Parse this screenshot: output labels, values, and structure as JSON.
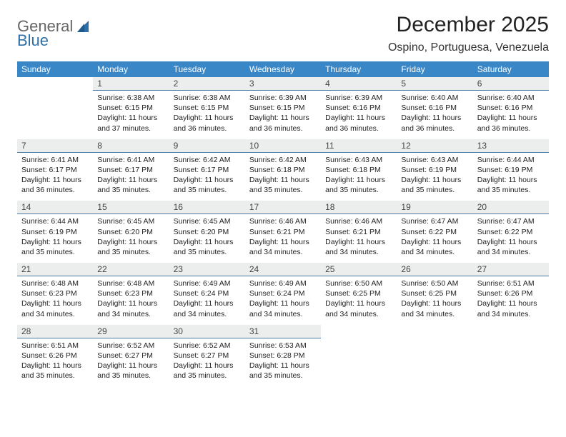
{
  "brand": {
    "general": "General",
    "blue": "Blue"
  },
  "title": {
    "month": "December 2025",
    "location": "Ospino, Portuguesa, Venezuela"
  },
  "colors": {
    "header_bg": "#3a87c8",
    "header_fg": "#ffffff",
    "daynum_bg": "#eceded",
    "daynum_border": "#4a7aa5",
    "text": "#222222",
    "logo_accent": "#2f6fa7"
  },
  "weekdays": [
    "Sunday",
    "Monday",
    "Tuesday",
    "Wednesday",
    "Thursday",
    "Friday",
    "Saturday"
  ],
  "weeks": [
    {
      "nums": [
        "",
        "1",
        "2",
        "3",
        "4",
        "5",
        "6"
      ],
      "cells": [
        null,
        {
          "sunrise": "Sunrise: 6:38 AM",
          "sunset": "Sunset: 6:15 PM",
          "daylight": "Daylight: 11 hours and 37 minutes."
        },
        {
          "sunrise": "Sunrise: 6:38 AM",
          "sunset": "Sunset: 6:15 PM",
          "daylight": "Daylight: 11 hours and 36 minutes."
        },
        {
          "sunrise": "Sunrise: 6:39 AM",
          "sunset": "Sunset: 6:15 PM",
          "daylight": "Daylight: 11 hours and 36 minutes."
        },
        {
          "sunrise": "Sunrise: 6:39 AM",
          "sunset": "Sunset: 6:16 PM",
          "daylight": "Daylight: 11 hours and 36 minutes."
        },
        {
          "sunrise": "Sunrise: 6:40 AM",
          "sunset": "Sunset: 6:16 PM",
          "daylight": "Daylight: 11 hours and 36 minutes."
        },
        {
          "sunrise": "Sunrise: 6:40 AM",
          "sunset": "Sunset: 6:16 PM",
          "daylight": "Daylight: 11 hours and 36 minutes."
        }
      ]
    },
    {
      "nums": [
        "7",
        "8",
        "9",
        "10",
        "11",
        "12",
        "13"
      ],
      "cells": [
        {
          "sunrise": "Sunrise: 6:41 AM",
          "sunset": "Sunset: 6:17 PM",
          "daylight": "Daylight: 11 hours and 36 minutes."
        },
        {
          "sunrise": "Sunrise: 6:41 AM",
          "sunset": "Sunset: 6:17 PM",
          "daylight": "Daylight: 11 hours and 35 minutes."
        },
        {
          "sunrise": "Sunrise: 6:42 AM",
          "sunset": "Sunset: 6:17 PM",
          "daylight": "Daylight: 11 hours and 35 minutes."
        },
        {
          "sunrise": "Sunrise: 6:42 AM",
          "sunset": "Sunset: 6:18 PM",
          "daylight": "Daylight: 11 hours and 35 minutes."
        },
        {
          "sunrise": "Sunrise: 6:43 AM",
          "sunset": "Sunset: 6:18 PM",
          "daylight": "Daylight: 11 hours and 35 minutes."
        },
        {
          "sunrise": "Sunrise: 6:43 AM",
          "sunset": "Sunset: 6:19 PM",
          "daylight": "Daylight: 11 hours and 35 minutes."
        },
        {
          "sunrise": "Sunrise: 6:44 AM",
          "sunset": "Sunset: 6:19 PM",
          "daylight": "Daylight: 11 hours and 35 minutes."
        }
      ]
    },
    {
      "nums": [
        "14",
        "15",
        "16",
        "17",
        "18",
        "19",
        "20"
      ],
      "cells": [
        {
          "sunrise": "Sunrise: 6:44 AM",
          "sunset": "Sunset: 6:19 PM",
          "daylight": "Daylight: 11 hours and 35 minutes."
        },
        {
          "sunrise": "Sunrise: 6:45 AM",
          "sunset": "Sunset: 6:20 PM",
          "daylight": "Daylight: 11 hours and 35 minutes."
        },
        {
          "sunrise": "Sunrise: 6:45 AM",
          "sunset": "Sunset: 6:20 PM",
          "daylight": "Daylight: 11 hours and 35 minutes."
        },
        {
          "sunrise": "Sunrise: 6:46 AM",
          "sunset": "Sunset: 6:21 PM",
          "daylight": "Daylight: 11 hours and 34 minutes."
        },
        {
          "sunrise": "Sunrise: 6:46 AM",
          "sunset": "Sunset: 6:21 PM",
          "daylight": "Daylight: 11 hours and 34 minutes."
        },
        {
          "sunrise": "Sunrise: 6:47 AM",
          "sunset": "Sunset: 6:22 PM",
          "daylight": "Daylight: 11 hours and 34 minutes."
        },
        {
          "sunrise": "Sunrise: 6:47 AM",
          "sunset": "Sunset: 6:22 PM",
          "daylight": "Daylight: 11 hours and 34 minutes."
        }
      ]
    },
    {
      "nums": [
        "21",
        "22",
        "23",
        "24",
        "25",
        "26",
        "27"
      ],
      "cells": [
        {
          "sunrise": "Sunrise: 6:48 AM",
          "sunset": "Sunset: 6:23 PM",
          "daylight": "Daylight: 11 hours and 34 minutes."
        },
        {
          "sunrise": "Sunrise: 6:48 AM",
          "sunset": "Sunset: 6:23 PM",
          "daylight": "Daylight: 11 hours and 34 minutes."
        },
        {
          "sunrise": "Sunrise: 6:49 AM",
          "sunset": "Sunset: 6:24 PM",
          "daylight": "Daylight: 11 hours and 34 minutes."
        },
        {
          "sunrise": "Sunrise: 6:49 AM",
          "sunset": "Sunset: 6:24 PM",
          "daylight": "Daylight: 11 hours and 34 minutes."
        },
        {
          "sunrise": "Sunrise: 6:50 AM",
          "sunset": "Sunset: 6:25 PM",
          "daylight": "Daylight: 11 hours and 34 minutes."
        },
        {
          "sunrise": "Sunrise: 6:50 AM",
          "sunset": "Sunset: 6:25 PM",
          "daylight": "Daylight: 11 hours and 34 minutes."
        },
        {
          "sunrise": "Sunrise: 6:51 AM",
          "sunset": "Sunset: 6:26 PM",
          "daylight": "Daylight: 11 hours and 34 minutes."
        }
      ]
    },
    {
      "nums": [
        "28",
        "29",
        "30",
        "31",
        "",
        "",
        ""
      ],
      "cells": [
        {
          "sunrise": "Sunrise: 6:51 AM",
          "sunset": "Sunset: 6:26 PM",
          "daylight": "Daylight: 11 hours and 35 minutes."
        },
        {
          "sunrise": "Sunrise: 6:52 AM",
          "sunset": "Sunset: 6:27 PM",
          "daylight": "Daylight: 11 hours and 35 minutes."
        },
        {
          "sunrise": "Sunrise: 6:52 AM",
          "sunset": "Sunset: 6:27 PM",
          "daylight": "Daylight: 11 hours and 35 minutes."
        },
        {
          "sunrise": "Sunrise: 6:53 AM",
          "sunset": "Sunset: 6:28 PM",
          "daylight": "Daylight: 11 hours and 35 minutes."
        },
        null,
        null,
        null
      ]
    }
  ]
}
